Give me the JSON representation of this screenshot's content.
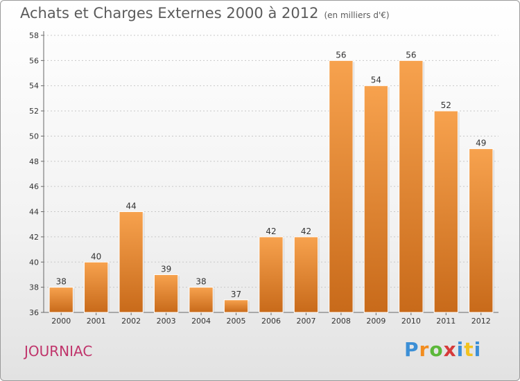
{
  "header": {
    "title": "Achats et Charges Externes 2000 à 2012",
    "unit": "(en milliers d'€)"
  },
  "commune": "JOURNIAC",
  "logo": {
    "text": "Proxiti"
  },
  "colors": {
    "bar_top": "#f7a24e",
    "bar_bottom": "#c86a1a",
    "commune": "#c0346b"
  },
  "chart_data": {
    "type": "bar",
    "title": "Achats et Charges Externes 2000 à 2012",
    "subtitle": "(en milliers d'€)",
    "categories": [
      "2000",
      "2001",
      "2002",
      "2003",
      "2004",
      "2005",
      "2006",
      "2007",
      "2008",
      "2009",
      "2010",
      "2011",
      "2012"
    ],
    "values": [
      38,
      40,
      44,
      39,
      38,
      37,
      42,
      42,
      56,
      54,
      56,
      52,
      49
    ],
    "ylim": [
      36,
      58
    ],
    "yticks": [
      36,
      38,
      40,
      42,
      44,
      46,
      48,
      50,
      52,
      54,
      56,
      58
    ],
    "grid": true,
    "xlabel": "",
    "ylabel": ""
  }
}
